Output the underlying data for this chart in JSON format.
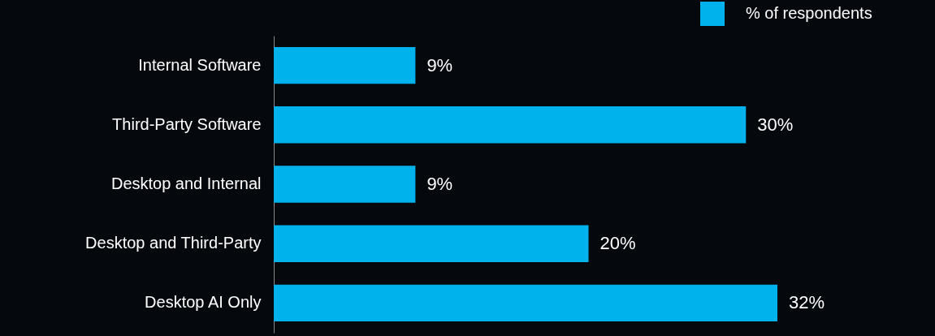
{
  "chart_data": {
    "type": "bar",
    "orientation": "horizontal",
    "categories": [
      "Internal Software",
      "Third-Party Software",
      "Desktop and Internal",
      "Desktop and Third-Party",
      "Desktop AI Only"
    ],
    "series": [
      {
        "name": "% of respondents",
        "color": "#00b2ec",
        "values": [
          9,
          30,
          9,
          20,
          32
        ],
        "value_labels": [
          "9%",
          "30%",
          "9%",
          "20%",
          "32%"
        ]
      }
    ],
    "legend": "top right"
  }
}
